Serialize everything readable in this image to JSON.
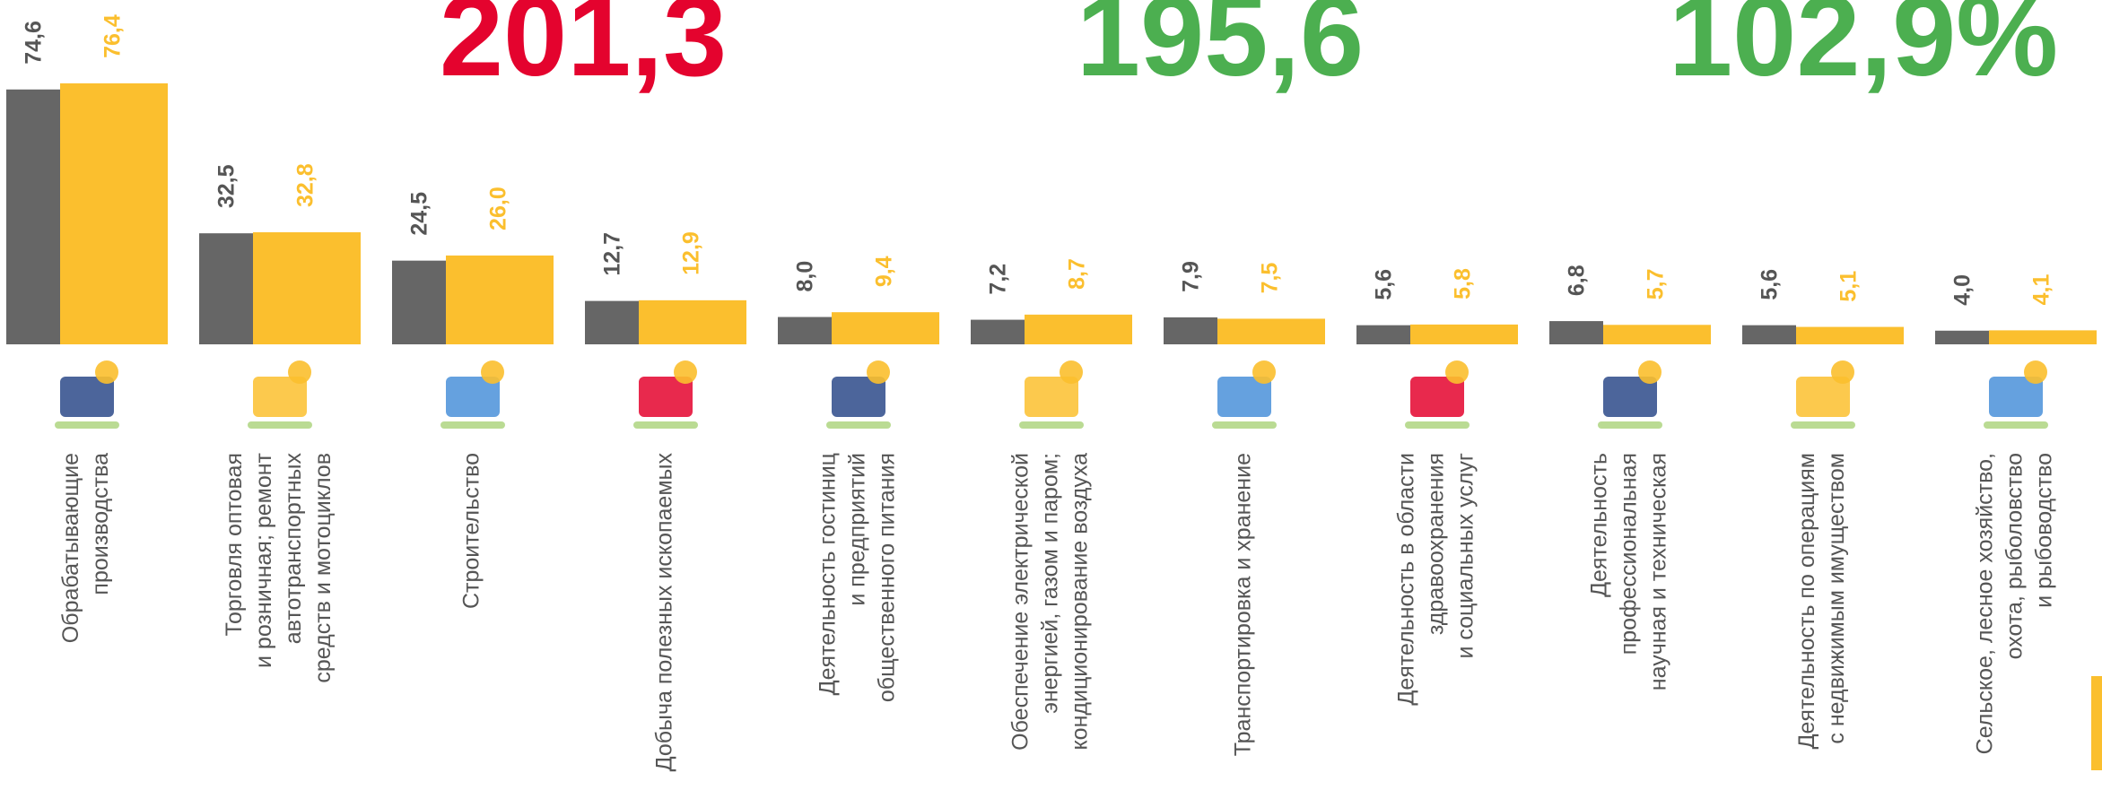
{
  "chart_data": {
    "type": "bar",
    "annotations": [
      {
        "text": "201,3",
        "color": "#e4032e"
      },
      {
        "text": "195,6",
        "color": "#4caf50"
      },
      {
        "text": "102,9%",
        "color": "#4caf50"
      }
    ],
    "categories": [
      [
        "Обрабатывающие",
        "производства"
      ],
      [
        "Торговля оптовая",
        "и розничная; ремонт",
        "автотранспортных",
        "средств и мотоциклов"
      ],
      [
        "Строительство"
      ],
      [
        "Добыча полезных ископаемых"
      ],
      [
        "Деятельность гостиниц",
        "и предприятий",
        "общественного питания"
      ],
      [
        "Обеспечение электрической",
        "энергией, газом и паром;",
        "кондиционирование воздуха"
      ],
      [
        "Транспортировка и хранение"
      ],
      [
        "Деятельность в области",
        "здравоохранения",
        "и социальных услуг"
      ],
      [
        "Деятельность",
        "профессиональная",
        "научная и техническая"
      ],
      [
        "Деятельность по операциям",
        "с недвижимым имуществом"
      ],
      [
        "Сельское, лесное хозяйство,",
        "охота, рыболовство",
        "и рыбоводство"
      ]
    ],
    "series": [
      {
        "color": "#666666",
        "values": [
          74.6,
          32.5,
          24.5,
          12.7,
          8.0,
          7.2,
          7.9,
          5.6,
          6.8,
          5.6,
          4.0
        ],
        "value_labels": [
          "74,6",
          "32,5",
          "24,5",
          "12,7",
          "8,0",
          "7,2",
          "7,9",
          "5,6",
          "6,8",
          "5,6",
          "4,0"
        ]
      },
      {
        "color": "#fbbf2e",
        "values": [
          76.4,
          32.8,
          26.0,
          12.9,
          9.4,
          8.7,
          7.5,
          5.8,
          5.7,
          5.1,
          4.1
        ],
        "value_labels": [
          "76,4",
          "32,8",
          "26,0",
          "12,9",
          "9,4",
          "8,7",
          "7,5",
          "5,8",
          "5,7",
          "5,1",
          "4,1"
        ]
      }
    ]
  }
}
